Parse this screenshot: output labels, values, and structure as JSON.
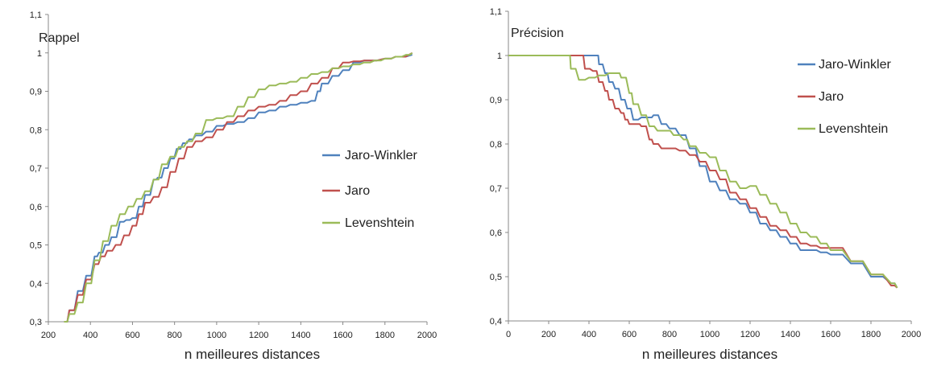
{
  "chart_data": [
    {
      "type": "line",
      "title": "Rappel",
      "xlabel": "n meilleures distances",
      "ylabel": "",
      "xlim": [
        200,
        2000
      ],
      "ylim": [
        0.3,
        1.1
      ],
      "x_ticks": [
        200,
        400,
        600,
        800,
        1000,
        1200,
        1400,
        1600,
        1800,
        2000
      ],
      "x_tick_labels": [
        "200",
        "400",
        "600",
        "800",
        "1000",
        "1200",
        "1400",
        "1600",
        "1800",
        "2000"
      ],
      "y_ticks": [
        0.3,
        0.4,
        0.5,
        0.6,
        0.7,
        0.8,
        0.9,
        1.0,
        1.1
      ],
      "y_tick_labels": [
        "0,3",
        "0,4",
        "0,5",
        "0,6",
        "0,7",
        "0,8",
        "0,9",
        "1",
        "1,1"
      ],
      "grid": false,
      "legend_position": "right",
      "series": [
        {
          "name": "Jaro-Winkler",
          "color": "#4f81bd",
          "x": [
            275,
            300,
            340,
            380,
            420,
            440,
            470,
            500,
            540,
            570,
            600,
            630,
            660,
            700,
            720,
            750,
            780,
            810,
            840,
            870,
            900,
            950,
            1000,
            1050,
            1100,
            1150,
            1200,
            1250,
            1300,
            1350,
            1400,
            1450,
            1480,
            1500,
            1550,
            1600,
            1650,
            1700,
            1800,
            1850,
            1930
          ],
          "y": [
            0.3,
            0.33,
            0.38,
            0.42,
            0.47,
            0.48,
            0.5,
            0.52,
            0.56,
            0.565,
            0.57,
            0.6,
            0.63,
            0.67,
            0.675,
            0.7,
            0.725,
            0.75,
            0.765,
            0.775,
            0.785,
            0.795,
            0.81,
            0.815,
            0.82,
            0.83,
            0.845,
            0.85,
            0.86,
            0.865,
            0.87,
            0.875,
            0.9,
            0.92,
            0.94,
            0.955,
            0.975,
            0.98,
            0.985,
            0.99,
            0.995
          ]
        },
        {
          "name": "Jaro",
          "color": "#c0504d",
          "x": [
            275,
            300,
            340,
            380,
            420,
            450,
            480,
            520,
            560,
            600,
            630,
            660,
            700,
            740,
            780,
            820,
            860,
            900,
            950,
            1000,
            1050,
            1100,
            1150,
            1200,
            1250,
            1300,
            1350,
            1400,
            1450,
            1500,
            1550,
            1600,
            1650,
            1700,
            1800,
            1850,
            1930
          ],
          "y": [
            0.3,
            0.33,
            0.37,
            0.41,
            0.45,
            0.47,
            0.485,
            0.5,
            0.525,
            0.55,
            0.58,
            0.61,
            0.625,
            0.65,
            0.69,
            0.725,
            0.755,
            0.77,
            0.78,
            0.8,
            0.82,
            0.835,
            0.85,
            0.86,
            0.865,
            0.875,
            0.89,
            0.9,
            0.92,
            0.935,
            0.96,
            0.975,
            0.978,
            0.98,
            0.985,
            0.99,
            1.0
          ]
        },
        {
          "name": "Levenshtein",
          "color": "#9bbb59",
          "x": [
            275,
            300,
            340,
            380,
            420,
            460,
            500,
            540,
            580,
            620,
            660,
            700,
            740,
            780,
            820,
            860,
            900,
            950,
            1000,
            1050,
            1100,
            1150,
            1200,
            1250,
            1300,
            1350,
            1400,
            1450,
            1500,
            1550,
            1600,
            1650,
            1700,
            1750,
            1800,
            1850,
            1900,
            1930
          ],
          "y": [
            0.3,
            0.32,
            0.35,
            0.4,
            0.46,
            0.51,
            0.55,
            0.58,
            0.6,
            0.62,
            0.64,
            0.67,
            0.71,
            0.73,
            0.755,
            0.77,
            0.79,
            0.825,
            0.83,
            0.835,
            0.86,
            0.885,
            0.905,
            0.915,
            0.92,
            0.925,
            0.935,
            0.945,
            0.95,
            0.96,
            0.965,
            0.97,
            0.975,
            0.98,
            0.985,
            0.99,
            0.995,
            1.0
          ]
        }
      ]
    },
    {
      "type": "line",
      "title": "Précision",
      "xlabel": "n meilleures distances",
      "ylabel": "",
      "xlim": [
        0,
        2000
      ],
      "ylim": [
        0.4,
        1.1
      ],
      "x_ticks": [
        0,
        200,
        400,
        600,
        800,
        1000,
        1200,
        1400,
        1600,
        1800,
        2000
      ],
      "x_tick_labels": [
        "0",
        "200",
        "400",
        "600",
        "800",
        "1000",
        "1200",
        "1400",
        "1600",
        "1800",
        "2000"
      ],
      "y_ticks": [
        0.4,
        0.5,
        0.6,
        0.7,
        0.8,
        0.9,
        1.0,
        1.1
      ],
      "y_tick_labels": [
        "0,4",
        "0,5",
        "0,6",
        "0,7",
        "0,8",
        "0,9",
        "1",
        "1,1"
      ],
      "grid": false,
      "legend_position": "top-right",
      "series": [
        {
          "name": "Jaro-Winkler",
          "color": "#4f81bd",
          "x": [
            0,
            200,
            300,
            400,
            440,
            450,
            480,
            500,
            530,
            560,
            590,
            620,
            660,
            700,
            720,
            760,
            800,
            850,
            900,
            950,
            1000,
            1050,
            1100,
            1150,
            1200,
            1250,
            1300,
            1350,
            1400,
            1450,
            1500,
            1550,
            1600,
            1700,
            1800,
            1900,
            1930
          ],
          "y": [
            1.0,
            1.0,
            1.0,
            1.0,
            1.0,
            0.98,
            0.96,
            0.94,
            0.925,
            0.9,
            0.88,
            0.855,
            0.86,
            0.86,
            0.865,
            0.845,
            0.835,
            0.82,
            0.79,
            0.75,
            0.715,
            0.695,
            0.675,
            0.665,
            0.645,
            0.62,
            0.605,
            0.59,
            0.575,
            0.56,
            0.56,
            0.555,
            0.55,
            0.53,
            0.5,
            0.485,
            0.475
          ]
        },
        {
          "name": "Jaro",
          "color": "#c0504d",
          "x": [
            0,
            200,
            300,
            360,
            380,
            420,
            450,
            480,
            500,
            530,
            560,
            580,
            600,
            640,
            660,
            700,
            720,
            760,
            800,
            850,
            900,
            950,
            1000,
            1050,
            1100,
            1150,
            1200,
            1250,
            1300,
            1350,
            1400,
            1450,
            1500,
            1550,
            1600,
            1700,
            1800,
            1900,
            1930
          ],
          "y": [
            1.0,
            1.0,
            1.0,
            1.0,
            0.97,
            0.965,
            0.94,
            0.92,
            0.9,
            0.88,
            0.87,
            0.855,
            0.845,
            0.845,
            0.84,
            0.81,
            0.8,
            0.79,
            0.79,
            0.785,
            0.775,
            0.76,
            0.74,
            0.72,
            0.69,
            0.675,
            0.655,
            0.635,
            0.615,
            0.605,
            0.59,
            0.575,
            0.57,
            0.565,
            0.565,
            0.535,
            0.505,
            0.48,
            0.475
          ]
        },
        {
          "name": "Levenshtein",
          "color": "#9bbb59",
          "x": [
            0,
            200,
            300,
            310,
            350,
            400,
            450,
            500,
            540,
            560,
            600,
            620,
            660,
            700,
            740,
            780,
            820,
            870,
            900,
            950,
            1000,
            1050,
            1100,
            1150,
            1200,
            1250,
            1300,
            1350,
            1400,
            1450,
            1500,
            1550,
            1600,
            1700,
            1800,
            1900,
            1930
          ],
          "y": [
            1.0,
            1.0,
            1.0,
            0.97,
            0.945,
            0.95,
            0.955,
            0.96,
            0.96,
            0.95,
            0.915,
            0.89,
            0.865,
            0.84,
            0.83,
            0.83,
            0.82,
            0.81,
            0.795,
            0.78,
            0.77,
            0.74,
            0.715,
            0.7,
            0.705,
            0.685,
            0.665,
            0.645,
            0.62,
            0.6,
            0.59,
            0.575,
            0.56,
            0.535,
            0.505,
            0.485,
            0.475
          ]
        }
      ]
    }
  ]
}
